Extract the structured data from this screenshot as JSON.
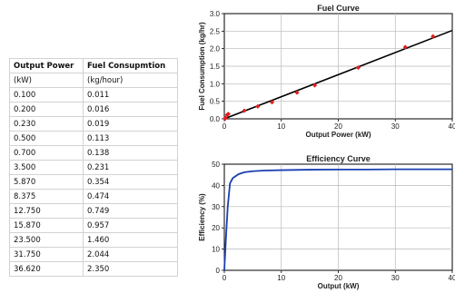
{
  "table": {
    "headers": [
      "Output Power",
      "Fuel Consupmtion"
    ],
    "units": [
      "(kW)",
      "(kg/hour)"
    ],
    "rows": [
      [
        "0.100",
        "0.011"
      ],
      [
        "0.200",
        "0.016"
      ],
      [
        "0.230",
        "0.019"
      ],
      [
        "0.500",
        "0.113"
      ],
      [
        "0.700",
        "0.138"
      ],
      [
        "3.500",
        "0.231"
      ],
      [
        "5.870",
        "0.354"
      ],
      [
        "8.375",
        "0.474"
      ],
      [
        "12.750",
        "0.749"
      ],
      [
        "15.870",
        "0.957"
      ],
      [
        "23.500",
        "1.460"
      ],
      [
        "31.750",
        "2.044"
      ],
      [
        "36.620",
        "2.350"
      ]
    ]
  },
  "chart_data": [
    {
      "type": "scatter",
      "title": "Fuel Curve",
      "xlabel": "Output Power (kW)",
      "ylabel": "Fuel Consumption (kg/hr)",
      "xlim": [
        0,
        40
      ],
      "ylim": [
        0,
        3
      ],
      "xticks": [
        "0",
        "10",
        "20",
        "30",
        "40"
      ],
      "yticks": [
        "0.0",
        "0.5",
        "1.0",
        "1.5",
        "2.0",
        "2.5",
        "3.0"
      ],
      "grid": true,
      "points": {
        "x": [
          0.1,
          0.2,
          0.23,
          0.5,
          0.7,
          3.5,
          5.87,
          8.375,
          12.75,
          15.87,
          23.5,
          31.75,
          36.62
        ],
        "y": [
          0.011,
          0.016,
          0.019,
          0.113,
          0.138,
          0.231,
          0.354,
          0.474,
          0.749,
          0.957,
          1.46,
          2.044,
          2.35
        ],
        "color": "#e02020"
      },
      "fit_line": {
        "x": [
          0,
          40
        ],
        "y": [
          0.0,
          2.52
        ],
        "color": "#000000"
      }
    },
    {
      "type": "line",
      "title": "Efficiency Curve",
      "xlabel": "Output (kW)",
      "ylabel": "Efficiency (%)",
      "xlim": [
        0,
        40
      ],
      "ylim": [
        0,
        50
      ],
      "xticks": [
        "0",
        "10",
        "20",
        "30",
        "40"
      ],
      "yticks": [
        "0",
        "10",
        "20",
        "30",
        "40",
        "50"
      ],
      "grid": true,
      "color": "#1a3fb0",
      "x": [
        0,
        0.3,
        0.6,
        1.0,
        1.5,
        2.5,
        3.5,
        5,
        7,
        10,
        15,
        20,
        25,
        30,
        35,
        40
      ],
      "y": [
        0,
        16,
        30,
        41,
        43.5,
        45.3,
        46.2,
        46.7,
        47.0,
        47.2,
        47.4,
        47.5,
        47.5,
        47.6,
        47.6,
        47.6
      ]
    }
  ]
}
